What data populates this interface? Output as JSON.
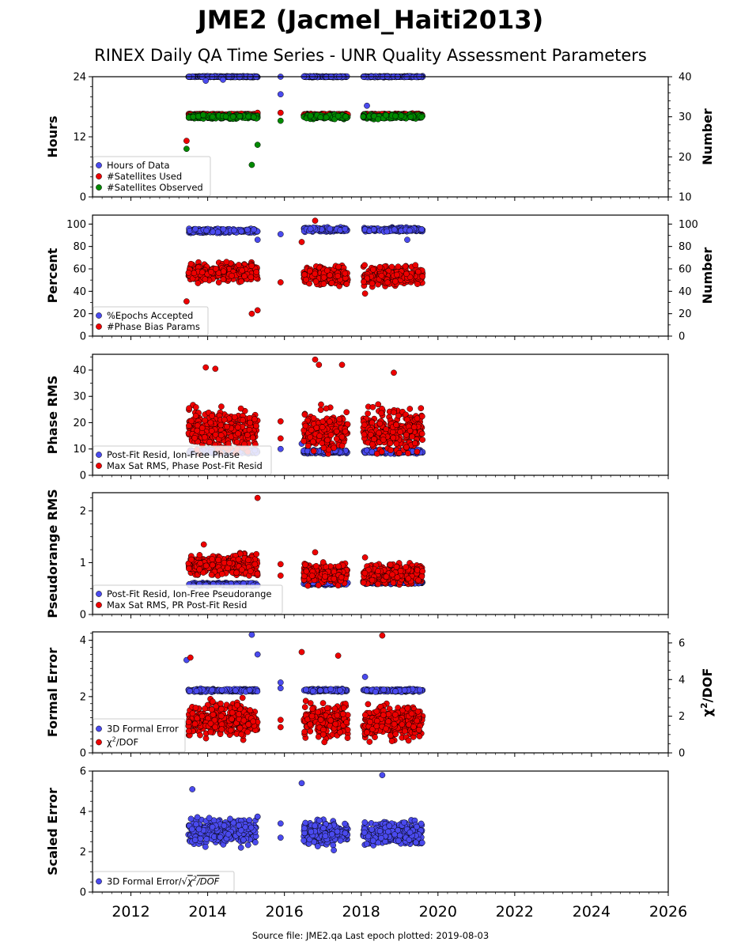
{
  "header": {
    "title": "JME2 (Jacmel_Haiti2013)",
    "subtitle": "RINEX Daily QA Time Series - UNR Quality Assessment Parameters"
  },
  "footer": {
    "text": "Source file: JME2.qa Last epoch plotted: 2019-08-03"
  },
  "colors": {
    "blue": "#4a4aee",
    "red": "#ee0000",
    "green": "#008a00",
    "black": "#000000"
  },
  "chart_data": [
    {
      "type": "scatter",
      "ylabel": "Hours",
      "y2label": "Number",
      "ylim": [
        0,
        24
      ],
      "yticks": [
        0,
        12,
        24
      ],
      "y2lim": [
        10,
        40
      ],
      "y2ticks": [
        10,
        20,
        30,
        40
      ],
      "xlim": [
        2011.0,
        2026.0
      ],
      "legend": "bottom-left",
      "series": [
        {
          "name": "Hours of Data",
          "color": "blue",
          "axis": "left",
          "kind": "band",
          "segments": [
            [
              2013.5,
              2015.3,
              24.0
            ],
            [
              2016.5,
              2017.65,
              24.0
            ],
            [
              2018.05,
              2019.6,
              24.0
            ]
          ],
          "spread": 0.15,
          "outliers": [
            [
              2013.95,
              23.2
            ],
            [
              2014.4,
              23.4
            ],
            [
              2015.9,
              24.0
            ],
            [
              2015.9,
              20.5
            ],
            [
              2018.15,
              18.2
            ]
          ]
        },
        {
          "name": "#Satellites Used",
          "color": "red",
          "axis": "right",
          "kind": "band",
          "segments": [
            [
              2013.5,
              2015.3,
              30.5
            ],
            [
              2016.5,
              2017.65,
              30.5
            ],
            [
              2018.05,
              2019.6,
              30.5
            ]
          ],
          "spread": 0.4,
          "outliers": [
            [
              2013.45,
              24.0
            ],
            [
              2015.3,
              31.0
            ],
            [
              2015.9,
              31.0
            ]
          ]
        },
        {
          "name": "#Satellites Observed",
          "color": "green",
          "axis": "right",
          "kind": "band",
          "segments": [
            [
              2013.5,
              2015.3,
              30.0
            ],
            [
              2016.5,
              2017.65,
              30.0
            ],
            [
              2018.05,
              2019.6,
              30.0
            ]
          ],
          "spread": 0.7,
          "outliers": [
            [
              2013.45,
              22.0
            ],
            [
              2015.15,
              18.0
            ],
            [
              2015.3,
              23.0
            ],
            [
              2015.9,
              29.0
            ]
          ]
        }
      ]
    },
    {
      "type": "scatter",
      "ylabel": "Percent",
      "y2label": "Number",
      "ylim": [
        0,
        108
      ],
      "yticks": [
        0,
        20,
        40,
        60,
        80,
        100
      ],
      "y2lim": [
        0,
        108
      ],
      "y2ticks": [
        0,
        20,
        40,
        60,
        80,
        100
      ],
      "xlim": [
        2011.0,
        2026.0
      ],
      "legend": "bottom-left",
      "series": [
        {
          "name": "%Epochs Accepted",
          "color": "blue",
          "axis": "left",
          "kind": "band",
          "segments": [
            [
              2013.5,
              2015.3,
              94.0
            ],
            [
              2016.5,
              2017.65,
              95.0
            ],
            [
              2018.05,
              2019.6,
              95.0
            ]
          ],
          "spread": 2.5,
          "outliers": [
            [
              2015.3,
              86.0
            ],
            [
              2015.9,
              91.0
            ],
            [
              2019.2,
              86.0
            ]
          ]
        },
        {
          "name": "#Phase Bias Params",
          "color": "red",
          "axis": "right",
          "kind": "cloud",
          "segments": [
            [
              2013.5,
              2015.3,
              57.0
            ],
            [
              2016.5,
              2017.65,
              54.0
            ],
            [
              2018.05,
              2019.6,
              54.0
            ]
          ],
          "spread": 7.0,
          "outliers": [
            [
              2013.45,
              31.0
            ],
            [
              2015.15,
              20.0
            ],
            [
              2015.3,
              23.0
            ],
            [
              2015.9,
              48.0
            ],
            [
              2016.45,
              84.0
            ],
            [
              2016.8,
              103.0
            ],
            [
              2018.1,
              38.0
            ]
          ]
        }
      ]
    },
    {
      "type": "scatter",
      "ylabel": "Phase RMS",
      "ylim": [
        0,
        46
      ],
      "yticks": [
        0,
        10,
        20,
        30,
        40
      ],
      "xlim": [
        2011.0,
        2026.0
      ],
      "legend": "bottom-left",
      "series": [
        {
          "name": "Post-Fit Resid, Ion-Free Phase",
          "color": "blue",
          "axis": "left",
          "kind": "band",
          "segments": [
            [
              2013.5,
              2015.3,
              9.0
            ],
            [
              2016.5,
              2017.65,
              9.0
            ],
            [
              2018.05,
              2019.6,
              9.0
            ]
          ],
          "spread": 1.0,
          "outliers": [
            [
              2015.9,
              10.0
            ],
            [
              2016.45,
              12.0
            ]
          ]
        },
        {
          "name": "Max Sat RMS, Phase Post-Fit Resid",
          "color": "red",
          "axis": "left",
          "kind": "cloud",
          "segments": [
            [
              2013.5,
              2015.3,
              17.0
            ],
            [
              2016.5,
              2017.65,
              17.0
            ],
            [
              2018.05,
              2019.6,
              17.0
            ]
          ],
          "spread": 7.0,
          "outliers": [
            [
              2013.95,
              41.0
            ],
            [
              2014.2,
              40.5
            ],
            [
              2016.8,
              44.0
            ],
            [
              2016.9,
              42.0
            ],
            [
              2017.5,
              42.0
            ],
            [
              2018.85,
              39.0
            ],
            [
              2015.9,
              20.5
            ],
            [
              2015.9,
              14.0
            ]
          ]
        }
      ]
    },
    {
      "type": "scatter",
      "ylabel": "Pseudorange RMS",
      "ylim": [
        0,
        2.35
      ],
      "yticks": [
        0,
        1,
        2
      ],
      "xlim": [
        2011.0,
        2026.0
      ],
      "legend": "bottom-left",
      "series": [
        {
          "name": "Post-Fit Resid, Ion-Free Pseudorange",
          "color": "blue",
          "axis": "left",
          "kind": "band",
          "segments": [
            [
              2013.5,
              2015.3,
              0.58
            ],
            [
              2016.5,
              2017.65,
              0.6
            ],
            [
              2018.05,
              2019.6,
              0.62
            ]
          ],
          "spread": 0.04,
          "outliers": [
            [
              2015.3,
              0.56
            ]
          ]
        },
        {
          "name": "Max Sat RMS, PR Post-Fit Resid",
          "color": "red",
          "axis": "left",
          "kind": "cloud",
          "segments": [
            [
              2013.5,
              2015.3,
              0.95
            ],
            [
              2016.5,
              2017.65,
              0.78
            ],
            [
              2018.05,
              2019.6,
              0.78
            ]
          ],
          "spread": 0.17,
          "outliers": [
            [
              2013.9,
              1.35
            ],
            [
              2015.3,
              2.25
            ],
            [
              2015.9,
              0.97
            ],
            [
              2015.9,
              0.75
            ],
            [
              2016.8,
              1.2
            ],
            [
              2018.1,
              1.1
            ]
          ]
        }
      ]
    },
    {
      "type": "scatter",
      "ylabel": "Formal Error",
      "y2label": "χ²/DOF",
      "ylim": [
        0,
        4.3
      ],
      "yticks": [
        0,
        2,
        4
      ],
      "y2lim": [
        0,
        6.6
      ],
      "y2ticks": [
        0,
        2,
        4,
        6
      ],
      "xlim": [
        2011.0,
        2026.0
      ],
      "legend": "bottom-left",
      "series": [
        {
          "name": "3D Formal Error",
          "color": "blue",
          "axis": "left",
          "kind": "band",
          "segments": [
            [
              2013.5,
              2015.3,
              2.22
            ],
            [
              2016.5,
              2017.65,
              2.22
            ],
            [
              2018.05,
              2019.6,
              2.22
            ]
          ],
          "spread": 0.07,
          "outliers": [
            [
              2013.45,
              3.3
            ],
            [
              2015.15,
              4.2
            ],
            [
              2015.3,
              3.5
            ],
            [
              2015.9,
              2.5
            ],
            [
              2015.9,
              2.3
            ],
            [
              2018.1,
              2.7
            ]
          ]
        },
        {
          "name": "χ²/DOF",
          "color": "red",
          "axis": "right",
          "kind": "cloud",
          "segments": [
            [
              2013.5,
              2015.3,
              1.8
            ],
            [
              2016.5,
              2017.65,
              1.8
            ],
            [
              2018.05,
              2019.6,
              1.7
            ]
          ],
          "spread": 0.8,
          "outliers": [
            [
              2013.55,
              5.2
            ],
            [
              2016.45,
              5.5
            ],
            [
              2017.4,
              5.3
            ],
            [
              2018.55,
              6.4
            ],
            [
              2015.9,
              1.8
            ],
            [
              2015.9,
              1.4
            ]
          ]
        }
      ]
    },
    {
      "type": "scatter",
      "ylabel": "Scaled Error",
      "ylim": [
        0,
        6
      ],
      "yticks": [
        0,
        2,
        4,
        6
      ],
      "xlim": [
        2011.0,
        2026.0
      ],
      "legend": "bottom-left",
      "series": [
        {
          "name": "3D Formal Error/√χ²/DOF",
          "color": "blue",
          "axis": "left",
          "kind": "cloud",
          "segments": [
            [
              2013.5,
              2015.3,
              3.0
            ],
            [
              2016.5,
              2017.65,
              2.9
            ],
            [
              2018.05,
              2019.6,
              2.9
            ]
          ],
          "spread": 0.55,
          "outliers": [
            [
              2013.6,
              5.1
            ],
            [
              2016.45,
              5.4
            ],
            [
              2018.55,
              5.8
            ],
            [
              2015.9,
              3.4
            ],
            [
              2015.9,
              2.7
            ]
          ]
        }
      ]
    }
  ],
  "x_axis": {
    "ticks": [
      2012,
      2014,
      2016,
      2018,
      2020,
      2022,
      2024,
      2026
    ]
  }
}
